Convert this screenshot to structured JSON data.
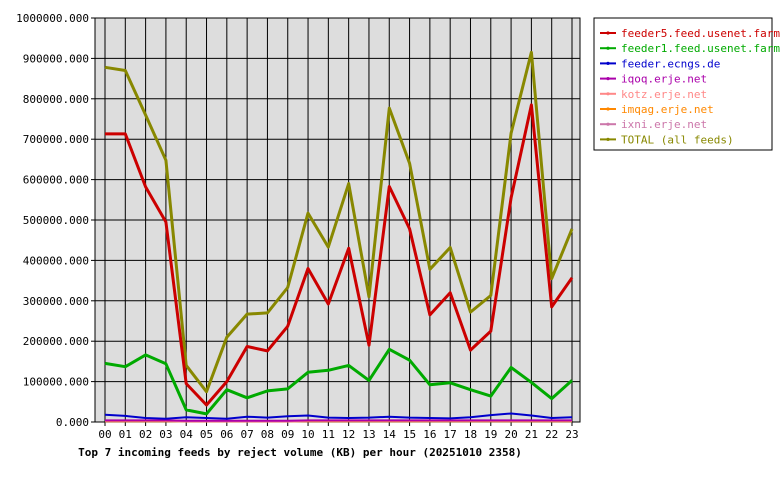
{
  "chart_data": {
    "type": "line",
    "title": "Top 7 incoming feeds by reject volume (KB) per hour (20251010 2358)",
    "xlabel": "",
    "ylabel": "",
    "ylim": [
      0,
      1000000
    ],
    "yticks": [
      "0.000",
      "100000.000",
      "200000.000",
      "300000.000",
      "400000.000",
      "500000.000",
      "600000.000",
      "700000.000",
      "800000.000",
      "900000.000",
      "1000000.000"
    ],
    "x": [
      "00",
      "01",
      "02",
      "03",
      "04",
      "05",
      "06",
      "07",
      "08",
      "09",
      "10",
      "11",
      "12",
      "13",
      "14",
      "15",
      "16",
      "17",
      "18",
      "19",
      "20",
      "21",
      "22",
      "23"
    ],
    "grid": true,
    "legend_position": "right",
    "series": [
      {
        "name": "feeder5.feed.usenet.farm",
        "color": "#cc0000",
        "values": [
          713000,
          713000,
          582000,
          495000,
          95000,
          42000,
          100000,
          187000,
          176000,
          237000,
          380000,
          292000,
          430000,
          190000,
          583000,
          478000,
          265000,
          320000,
          178000,
          225000,
          555000,
          785000,
          285000,
          357000
        ]
      },
      {
        "name": "feeder1.feed.usenet.farm",
        "color": "#00aa00",
        "values": [
          145000,
          137000,
          166000,
          144000,
          30000,
          20000,
          80000,
          60000,
          77000,
          82000,
          123000,
          128000,
          140000,
          103000,
          180000,
          153000,
          92000,
          97000,
          80000,
          64000,
          135000,
          98000,
          58000,
          103000
        ]
      },
      {
        "name": "feeder.ecngs.de",
        "color": "#0000cc",
        "values": [
          18000,
          15000,
          10000,
          8000,
          12000,
          10000,
          8000,
          13000,
          11000,
          14000,
          16000,
          11000,
          10000,
          11000,
          13000,
          11000,
          10000,
          9000,
          12000,
          17000,
          21000,
          16000,
          10000,
          12000
        ]
      },
      {
        "name": "iqoq.erje.net",
        "color": "#aa00aa",
        "values": [
          4000,
          4000,
          4000,
          4000,
          3000,
          3000,
          3000,
          3000,
          3000,
          3000,
          4000,
          4000,
          4000,
          4000,
          4000,
          4000,
          4000,
          4000,
          4000,
          4000,
          4000,
          4000,
          4000,
          4000
        ]
      },
      {
        "name": "kotz.erje.net",
        "color": "#ff8888",
        "values": [
          3000,
          3000,
          3000,
          3000,
          2000,
          2000,
          2000,
          2000,
          2000,
          2000,
          3000,
          3000,
          3000,
          3000,
          3000,
          3000,
          3000,
          3000,
          3000,
          3000,
          3000,
          3000,
          3000,
          3000
        ]
      },
      {
        "name": "imqag.erje.net",
        "color": "#ff8800",
        "values": [
          2000,
          2000,
          2000,
          2000,
          2000,
          2000,
          2000,
          2000,
          2000,
          2000,
          2000,
          2000,
          2000,
          2000,
          2000,
          2000,
          2000,
          2000,
          2000,
          2000,
          2000,
          2000,
          2000,
          2000
        ]
      },
      {
        "name": "ixni.erje.net",
        "color": "#cc77aa",
        "values": [
          2000,
          2000,
          2000,
          2000,
          1000,
          1000,
          1000,
          1000,
          1000,
          1000,
          2000,
          2000,
          2000,
          2000,
          2000,
          2000,
          2000,
          2000,
          2000,
          2000,
          2000,
          2000,
          2000,
          2000
        ]
      },
      {
        "name": "TOTAL (all feeds)",
        "color": "#888800",
        "values": [
          878000,
          870000,
          760000,
          648000,
          140000,
          75000,
          210000,
          267000,
          270000,
          333000,
          517000,
          433000,
          590000,
          310000,
          777000,
          640000,
          378000,
          432000,
          272000,
          313000,
          715000,
          915000,
          355000,
          478000
        ]
      }
    ]
  }
}
